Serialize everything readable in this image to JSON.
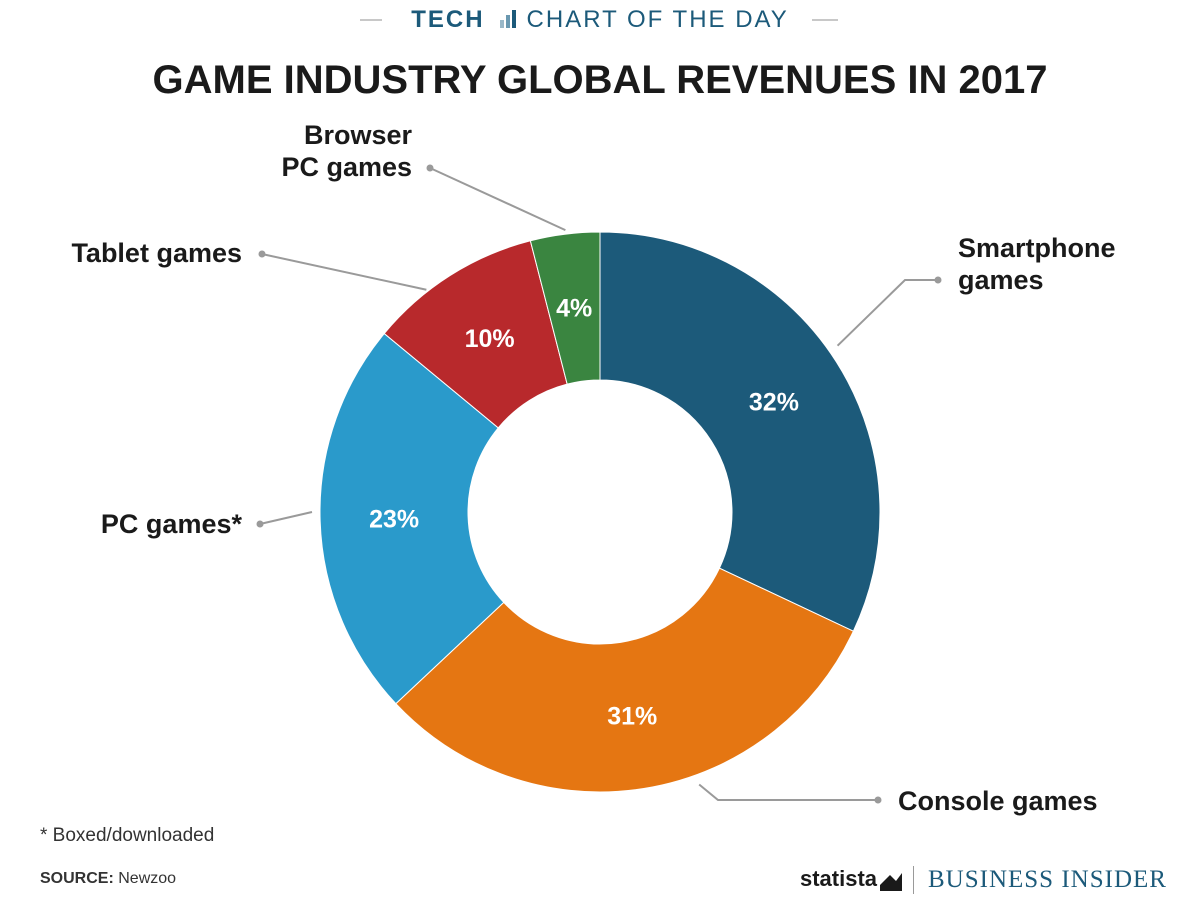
{
  "header": {
    "kicker_section": "TECH",
    "kicker_series": "CHART OF THE DAY"
  },
  "chart_data": {
    "type": "pie",
    "subtype": "donut",
    "title": "GAME INDUSTRY GLOBAL REVENUES IN 2017",
    "categories": [
      "Smartphone games",
      "Console games",
      "PC games*",
      "Tablet games",
      "Browser PC games"
    ],
    "values": [
      32,
      31,
      23,
      10,
      4
    ],
    "value_labels": [
      "32%",
      "31%",
      "23%",
      "10%",
      "4%"
    ],
    "label_lines": [
      [
        "Smartphone",
        "games"
      ],
      [
        "Console games"
      ],
      [
        "PC games*"
      ],
      [
        "Tablet games"
      ],
      [
        "Browser",
        "PC games"
      ]
    ],
    "colors": [
      "#1c5a7a",
      "#e57612",
      "#2a9acb",
      "#b8292c",
      "#3a8540"
    ],
    "start_angle_deg": 0,
    "direction": "clockwise",
    "legend": "none"
  },
  "footnote": "* Boxed/downloaded",
  "source": {
    "label": "SOURCE:",
    "text": "Newzoo"
  },
  "branding": {
    "statista": "statista",
    "publisher": "BUSINESS INSIDER"
  }
}
